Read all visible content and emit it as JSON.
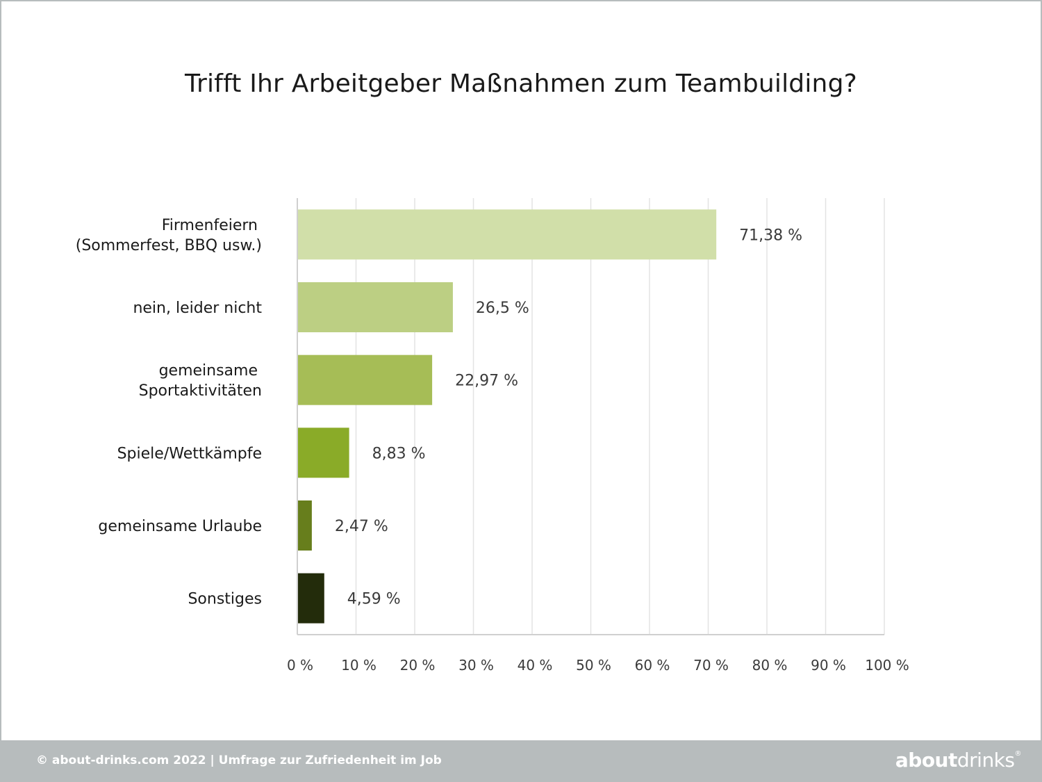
{
  "chart_data": {
    "type": "bar",
    "orientation": "horizontal",
    "title": "Trifft Ihr Arbeitgeber Maßnahmen zum Teambuilding?",
    "categories": [
      [
        "Firmenfeiern",
        "(Sommerfest, BBQ usw.)"
      ],
      [
        "nein, leider nicht"
      ],
      [
        "gemeinsame",
        "Sportaktivitäten"
      ],
      [
        "Spiele/Wettkämpfe"
      ],
      [
        "gemeinsame Urlaube"
      ],
      [
        "Sonstiges"
      ]
    ],
    "values": [
      71.38,
      26.5,
      22.97,
      8.83,
      2.47,
      4.59
    ],
    "value_labels": [
      "71,38 %",
      "26,5 %",
      "22,97 %",
      "8,83 %",
      "2,47 %",
      "4,59 %"
    ],
    "colors": [
      "#d1dfa9",
      "#bccf83",
      "#a6bd56",
      "#8aab28",
      "#677e1c",
      "#232c0b"
    ],
    "xlim": [
      0,
      100
    ],
    "xticks": [
      0,
      10,
      20,
      30,
      40,
      50,
      60,
      70,
      80,
      90,
      100
    ],
    "xtick_labels": [
      "0 %",
      "10 %",
      "20 %",
      "30 %",
      "40 %",
      "50 %",
      "60 %",
      "70 %",
      "80 %",
      "90 %",
      "100 %"
    ],
    "grid": true,
    "legend": "none"
  },
  "footer": {
    "text": "© about-drinks.com 2022  |  Umfrage zur Zufriedenheit im Job",
    "logo_bold": "about",
    "logo_light": "drinks",
    "logo_mark": "®"
  }
}
